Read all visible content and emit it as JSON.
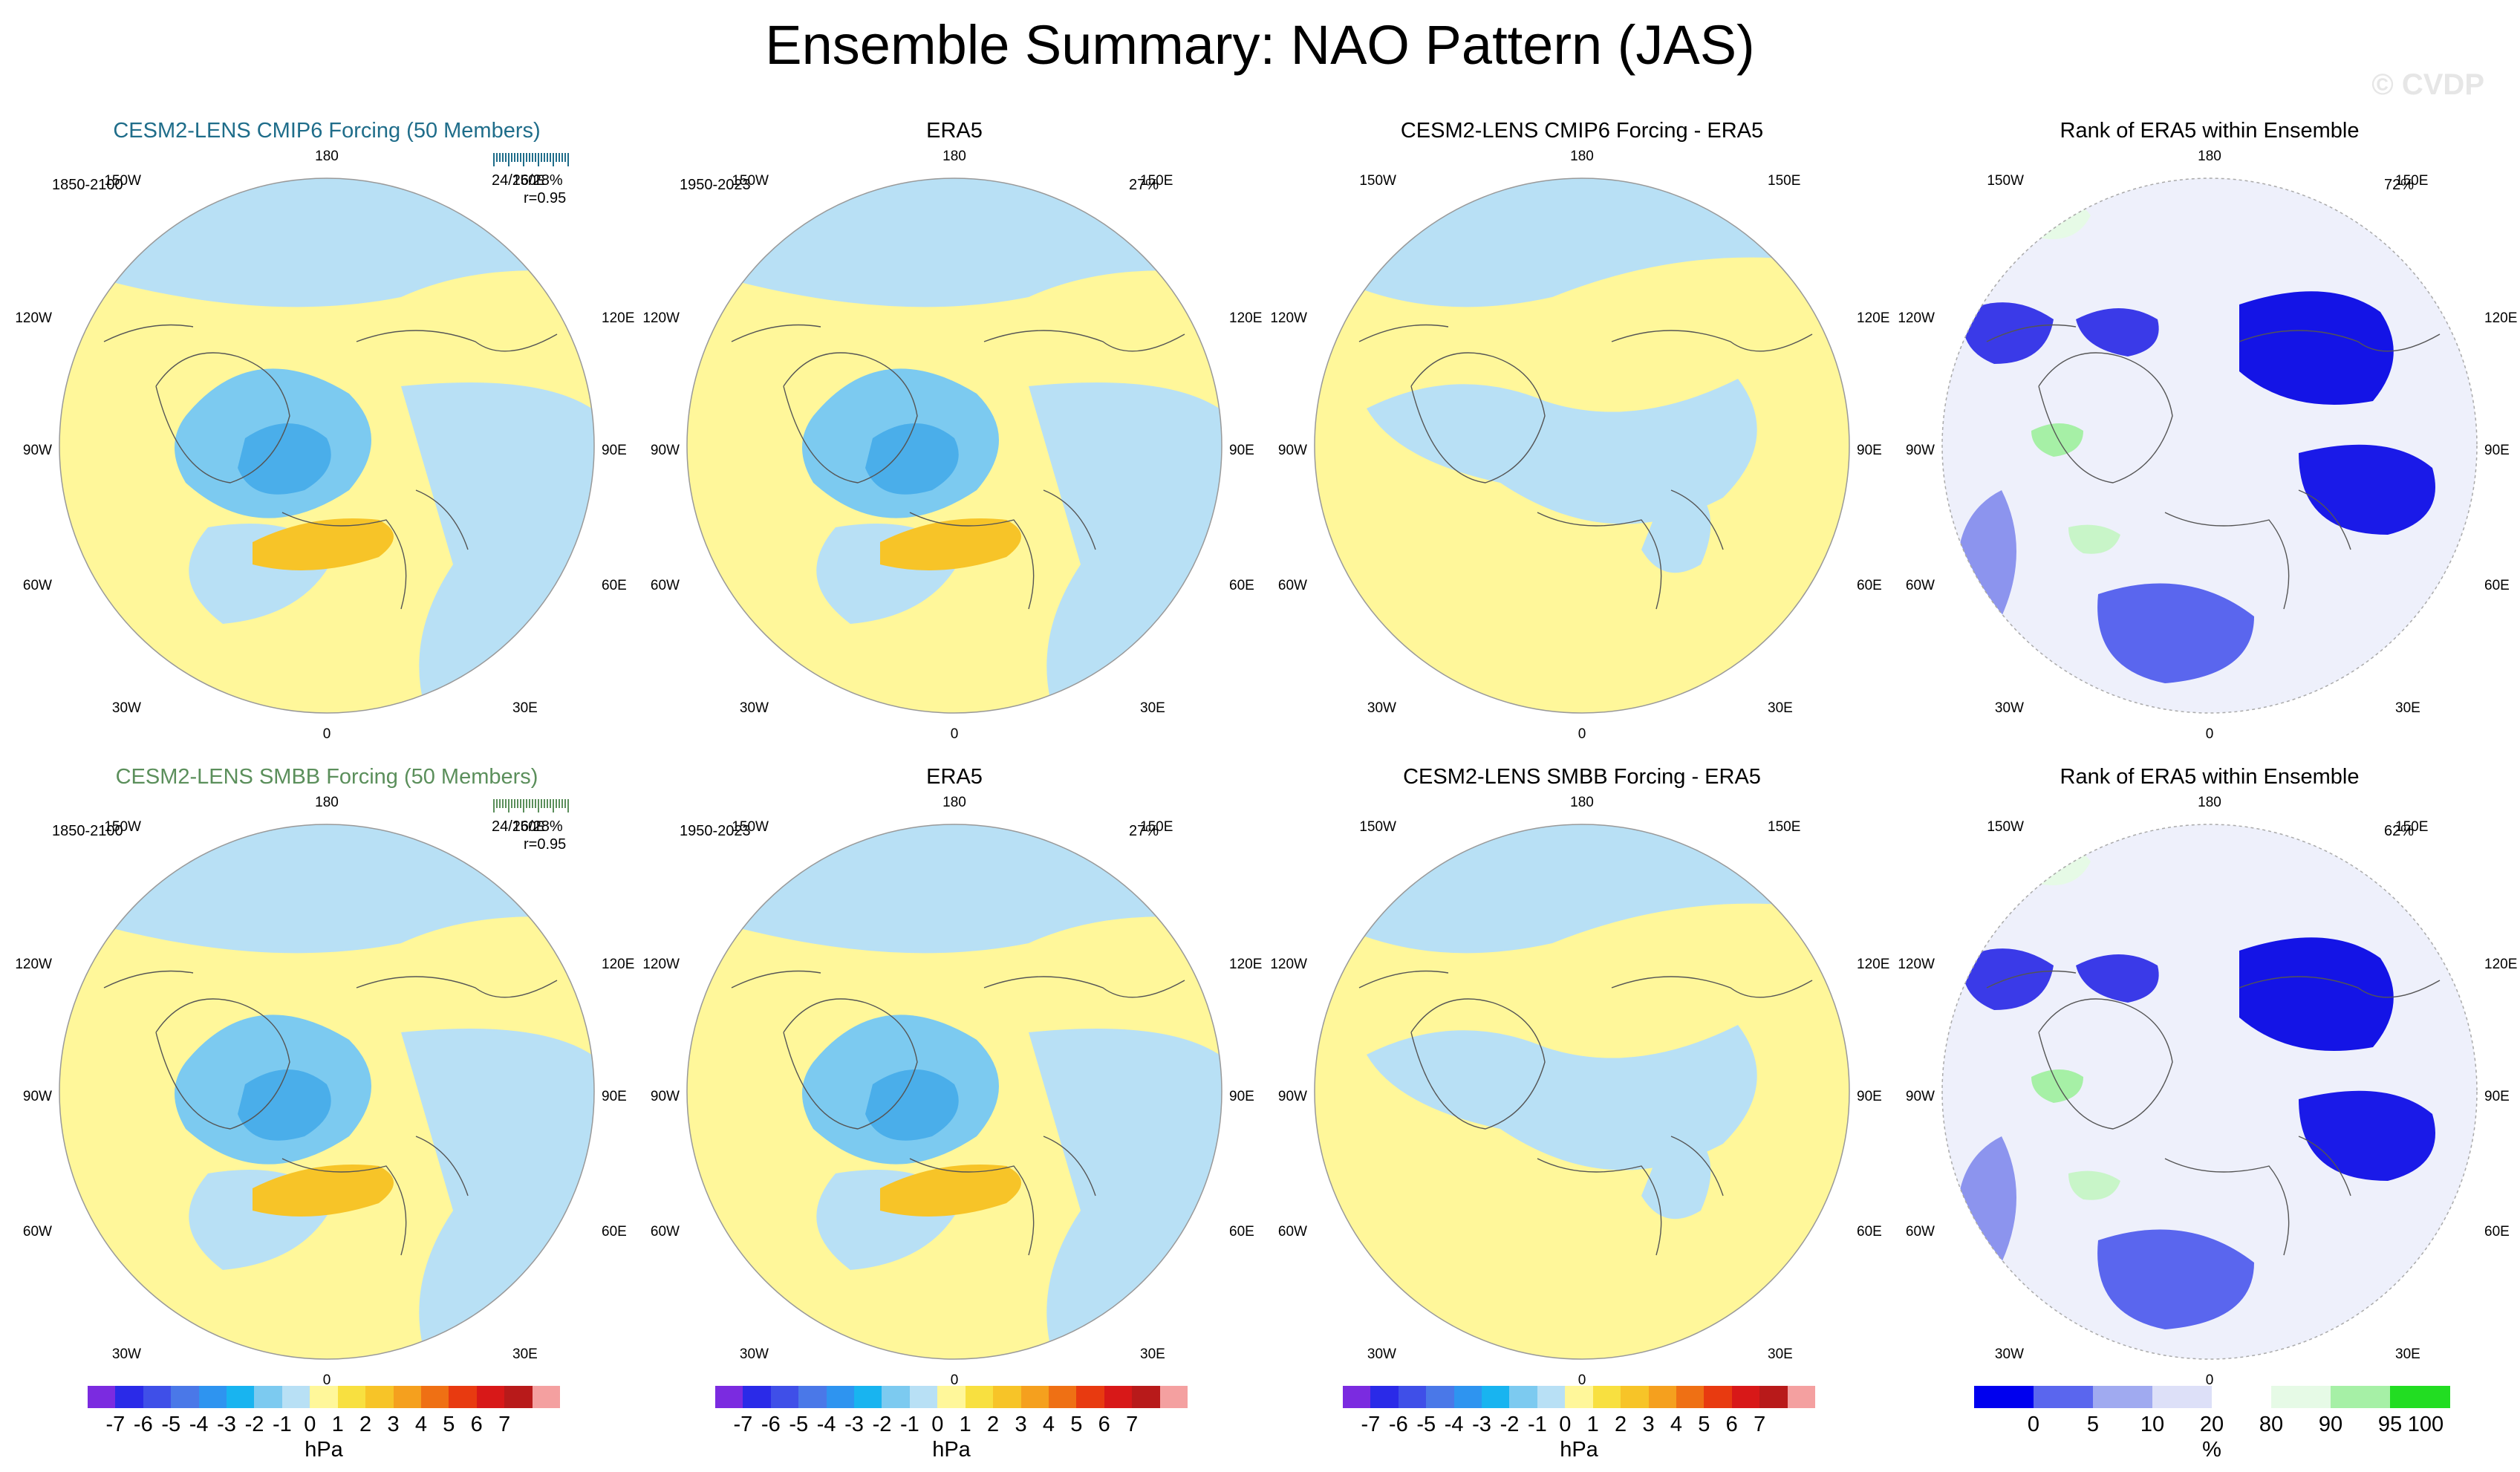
{
  "title": "Ensemble Summary: NAO Pattern (JAS)",
  "watermark": "© CVDP",
  "chart_data": [
    {
      "type": "map",
      "panel": "top-1",
      "title": "CESM2-LENS CMIP6 Forcing (50 Members)",
      "period": "1850-2100",
      "stats": "24/26/28%",
      "corr": "r=0.95",
      "field": "NAO pattern",
      "units": "hPa"
    },
    {
      "type": "map",
      "panel": "top-2",
      "title": "ERA5",
      "period": "1950-2023",
      "pct": "27%",
      "field": "NAO pattern",
      "units": "hPa"
    },
    {
      "type": "map",
      "panel": "top-3",
      "title": "CESM2-LENS CMIP6 Forcing - ERA5",
      "field": "difference",
      "units": "hPa"
    },
    {
      "type": "map",
      "panel": "top-4",
      "title": "Rank of ERA5 within Ensemble",
      "pct": "72%",
      "units": "%"
    },
    {
      "type": "map",
      "panel": "bottom-1",
      "title": "CESM2-LENS SMBB Forcing (50 Members)",
      "period": "1850-2100",
      "stats": "24/26/28%",
      "corr": "r=0.95",
      "field": "NAO pattern",
      "units": "hPa"
    },
    {
      "type": "map",
      "panel": "bottom-2",
      "title": "ERA5",
      "period": "1950-2023",
      "pct": "27%",
      "field": "NAO pattern",
      "units": "hPa"
    },
    {
      "type": "map",
      "panel": "bottom-3",
      "title": "CESM2-LENS SMBB Forcing - ERA5",
      "field": "difference",
      "units": "hPa"
    },
    {
      "type": "map",
      "panel": "bottom-4",
      "title": "Rank of ERA5 within Ensemble",
      "pct": "62%",
      "units": "%"
    }
  ],
  "map_labels": {
    "top": "180",
    "top_left": "150W",
    "top_right": "150E",
    "upper_left": "120W",
    "upper_right": "120E",
    "left": "90W",
    "right": "90E",
    "lower_left": "60W",
    "lower_right": "60E",
    "bottom_left": "30W",
    "bottom_right": "30E",
    "bottom": "0"
  },
  "colorbar_hpa": {
    "ticks": [
      "-7",
      "-6",
      "-5",
      "-4",
      "-3",
      "-2",
      "-1",
      "0",
      "1",
      "2",
      "3",
      "4",
      "5",
      "6",
      "7"
    ],
    "unit": "hPa",
    "colors": [
      "#7b2be0",
      "#2a2ae8",
      "#3f4fe8",
      "#4a78e8",
      "#2e94f0",
      "#18b4f0",
      "#7ccaf0",
      "#b8e0f5",
      "#fff79a",
      "#f8e040",
      "#f7c428",
      "#f5a01e",
      "#ef7014",
      "#e83a10",
      "#d81818",
      "#b81a1a",
      "#f4a0a0"
    ]
  },
  "colorbar_rank": {
    "ticks": [
      "0",
      "5",
      "10",
      "20",
      "80",
      "90",
      "95",
      "100"
    ],
    "unit": "%",
    "colors": [
      "#0000ee",
      "#5a66ee",
      "#a0aaf0",
      "#dde0f8",
      "#ffffff",
      "#e6fae6",
      "#a6f0a6",
      "#22dd22"
    ]
  }
}
